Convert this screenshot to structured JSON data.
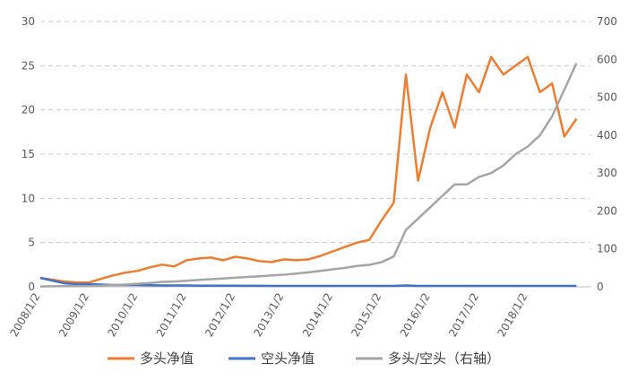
{
  "chart_data": {
    "type": "line",
    "categories": [
      "2008/1/2",
      null,
      null,
      null,
      "2009/1/2",
      null,
      null,
      null,
      "2010/1/2",
      null,
      null,
      null,
      "2011/1/2",
      null,
      null,
      null,
      "2012/1/2",
      null,
      null,
      null,
      "2013/1/2",
      null,
      null,
      null,
      "2014/1/2",
      null,
      null,
      null,
      "2015/1/2",
      null,
      null,
      null,
      "2016/1/2",
      null,
      null,
      null,
      "2017/1/2",
      null,
      null,
      null,
      "2018/1/2",
      null,
      null,
      null,
      null
    ],
    "series": [
      {
        "name": "多头净值",
        "color": "#ed7d31",
        "values": [
          1.0,
          0.8,
          0.6,
          0.5,
          0.5,
          0.9,
          1.3,
          1.6,
          1.8,
          2.2,
          2.5,
          2.3,
          3.0,
          3.2,
          3.3,
          3.0,
          3.4,
          3.2,
          2.9,
          2.8,
          3.1,
          3.0,
          3.1,
          3.5,
          4.0,
          4.5,
          5.0,
          5.3,
          7.5,
          9.5,
          24,
          12,
          18,
          22,
          18,
          24,
          22,
          26,
          24,
          25,
          26,
          22,
          23,
          17,
          19
        ]
      },
      {
        "name": "空头净值",
        "color": "#4472c4",
        "values": [
          1.0,
          0.7,
          0.4,
          0.3,
          0.3,
          0.25,
          0.2,
          0.2,
          0.2,
          0.18,
          0.15,
          0.15,
          0.15,
          0.13,
          0.12,
          0.12,
          0.12,
          0.11,
          0.11,
          0.1,
          0.1,
          0.1,
          0.1,
          0.1,
          0.1,
          0.1,
          0.1,
          0.1,
          0.1,
          0.1,
          0.15,
          0.1,
          0.1,
          0.1,
          0.1,
          0.1,
          0.1,
          0.1,
          0.1,
          0.1,
          0.1,
          0.1,
          0.1,
          0.1,
          0.1
        ]
      },
      {
        "name": "多头/空头（右轴）",
        "color": "#a5a5a5",
        "axis": "y2",
        "values": [
          1,
          1.5,
          2,
          2,
          2,
          3,
          5,
          6,
          8,
          10,
          13,
          14,
          16,
          18,
          20,
          22,
          24,
          26,
          28,
          30,
          32,
          35,
          38,
          42,
          46,
          50,
          55,
          58,
          65,
          80,
          150,
          180,
          210,
          240,
          270,
          270,
          290,
          300,
          320,
          350,
          370,
          400,
          450,
          520,
          590
        ]
      }
    ],
    "ylim": [
      0,
      30
    ],
    "yticks": [
      0,
      5,
      10,
      15,
      20,
      25,
      30
    ],
    "y2lim": [
      0,
      700
    ],
    "y2ticks": [
      0,
      100,
      200,
      300,
      400,
      500,
      600,
      700
    ],
    "grid": true
  }
}
